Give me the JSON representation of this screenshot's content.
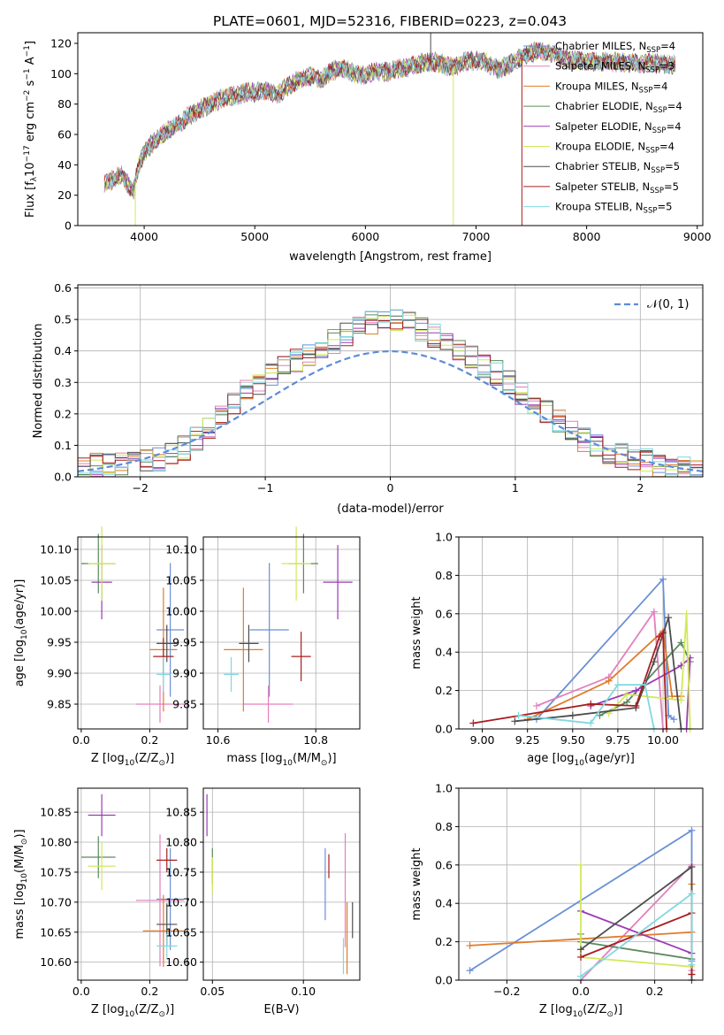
{
  "title": "PLATE=0601, MJD=52316, FIBERID=0223, z=0.043",
  "colors": {
    "Chabrier MILES": "#6a8fd6",
    "Salpeter MILES": "#e37fbd",
    "Kroupa MILES": "#e07b2a",
    "Chabrier ELODIE": "#5a8a5e",
    "Salpeter ELODIE": "#9b3bb5",
    "Kroupa ELODIE": "#d2e85a",
    "Chabrier STELIB": "#4d4d4d",
    "Salpeter STELIB": "#a81e1e",
    "Kroupa STELIB": "#7fd8e0"
  },
  "chart_data": [
    {
      "type": "line",
      "xlabel": "wavelength [Angstrom, rest frame]",
      "ylabel_main": "Flux [f",
      "ylabel_rest": "10",
      "ylabel_exp": "−17",
      "ylabel_units": " erg cm",
      "ylabel_exp2": "−2",
      "ylabel_s": " s",
      "ylabel_exp3": "−1",
      "ylabel_A": " A",
      "ylabel_exp4": "−1",
      "ylabel_end": "]",
      "xlim": [
        3400,
        9050
      ],
      "ylim": [
        0,
        127
      ],
      "xticks": [
        4000,
        5000,
        6000,
        7000,
        8000,
        9000
      ],
      "yticks": [
        0,
        20,
        40,
        60,
        80,
        100,
        120
      ],
      "legend_position": "right",
      "legend": [
        {
          "name": "Chabrier MILES",
          "nssp": "4"
        },
        {
          "name": "Salpeter MILES",
          "nssp": "3"
        },
        {
          "name": "Kroupa MILES",
          "nssp": "4"
        },
        {
          "name": "Chabrier ELODIE",
          "nssp": "4"
        },
        {
          "name": "Salpeter ELODIE",
          "nssp": "4"
        },
        {
          "name": "Kroupa ELODIE",
          "nssp": "4"
        },
        {
          "name": "Chabrier STELIB",
          "nssp": "5"
        },
        {
          "name": "Salpeter STELIB",
          "nssp": "5"
        },
        {
          "name": "Kroupa STELIB",
          "nssp": "5"
        }
      ],
      "spectrum_envelope": {
        "x": [
          3640,
          3700,
          3800,
          3900,
          3950,
          4000,
          4100,
          4200,
          4300,
          4400,
          4500,
          4600,
          4700,
          4800,
          4900,
          5000,
          5100,
          5200,
          5300,
          5400,
          5500,
          5600,
          5700,
          5800,
          5900,
          6000,
          6100,
          6200,
          6300,
          6400,
          6500,
          6600,
          6700,
          6800,
          6900,
          7000,
          7100,
          7200,
          7300,
          7400,
          7500,
          7600,
          7700,
          7800,
          7900,
          8000,
          8200,
          8400,
          8600,
          8800
        ],
        "y": [
          27,
          30,
          33,
          22,
          40,
          48,
          56,
          62,
          66,
          72,
          76,
          80,
          84,
          85,
          87,
          88,
          89,
          86,
          92,
          96,
          98,
          96,
          102,
          104,
          100,
          99,
          102,
          101,
          103,
          105,
          107,
          108,
          106,
          104,
          108,
          109,
          107,
          103,
          106,
          110,
          114,
          115,
          113,
          110,
          109,
          108,
          108,
          107,
          107,
          106
        ]
      },
      "spikes": [
        {
          "series": "Kroupa ELODIE",
          "x": 3920,
          "y": 0
        },
        {
          "series": "Kroupa ELODIE",
          "x": 6795,
          "y": 0
        },
        {
          "series": "Salpeter STELIB",
          "x": 7415,
          "y": 0
        },
        {
          "series": "Chabrier STELIB",
          "x": 6590,
          "y": 150
        }
      ]
    },
    {
      "type": "line",
      "xlabel": "(data-model)/error",
      "ylabel": "Normed distribution",
      "xlim": [
        -2.5,
        2.5
      ],
      "ylim": [
        0,
        0.61
      ],
      "xticks": [
        -2,
        -1,
        0,
        1,
        2
      ],
      "xtick_labels": [
        "−2",
        "−1",
        "0",
        "1",
        "2"
      ],
      "yticks": [
        0.0,
        0.1,
        0.2,
        0.3,
        0.4,
        0.5,
        0.6
      ],
      "ytick_labels": [
        "0.0",
        "0.1",
        "0.2",
        "0.3",
        "0.4",
        "0.5",
        "0.6"
      ],
      "grid": true,
      "legend_label": "𝒩(0, 1)",
      "legend_position": "top-right",
      "bin_width": 0.1,
      "base_hist": [
        0.02,
        0.04,
        0.035,
        0.04,
        0.045,
        0.05,
        0.055,
        0.07,
        0.09,
        0.12,
        0.15,
        0.19,
        0.23,
        0.27,
        0.3,
        0.33,
        0.35,
        0.37,
        0.39,
        0.41,
        0.43,
        0.45,
        0.47,
        0.49,
        0.5,
        0.5,
        0.49,
        0.47,
        0.45,
        0.43,
        0.4,
        0.38,
        0.35,
        0.33,
        0.3,
        0.27,
        0.24,
        0.21,
        0.18,
        0.15,
        0.12,
        0.1,
        0.08,
        0.07,
        0.06,
        0.05,
        0.04,
        0.035,
        0.03,
        0.02
      ]
    },
    {
      "type": "scatter",
      "xlabel": "Z [log",
      "xlabel_sub": "10",
      "xlabel_rest": "(Z/Z",
      "xlabel_sub2": "⊙",
      "xlabel_end": ")]",
      "ylabel": "age  [log",
      "ylabel_sub": "10",
      "ylabel_rest": "(age/yr)]",
      "xlim": [
        -0.01,
        0.31
      ],
      "ylim": [
        9.81,
        10.12
      ],
      "xticks": [
        0.0,
        0.2
      ],
      "xtick_labels": [
        "0.0",
        "0.2"
      ],
      "yticks": [
        9.85,
        9.9,
        9.95,
        10.0,
        10.05,
        10.1
      ],
      "ytick_labels": [
        "9.85",
        "9.90",
        "9.95",
        "10.00",
        "10.05",
        "10.10"
      ],
      "points": [
        {
          "series": "Chabrier MILES",
          "x": 0.26,
          "y": 9.97,
          "xerr": 0.04,
          "yerr": 0.108
        },
        {
          "series": "Salpeter MILES",
          "x": 0.23,
          "y": 9.85,
          "xerr": 0.07,
          "yerr": 0.03
        },
        {
          "series": "Kroupa MILES",
          "x": 0.24,
          "y": 9.938,
          "xerr": 0.04,
          "yerr": 0.1
        },
        {
          "series": "Chabrier ELODIE",
          "x": 0.05,
          "y": 10.077,
          "xerr": 0.05,
          "yerr": 0.048
        },
        {
          "series": "Salpeter ELODIE",
          "x": 0.06,
          "y": 10.047,
          "xerr": 0.03,
          "yerr": 0.06
        },
        {
          "series": "Kroupa ELODIE",
          "x": 0.06,
          "y": 10.077,
          "xerr": 0.04,
          "yerr": 0.06
        },
        {
          "series": "Chabrier STELIB",
          "x": 0.25,
          "y": 9.948,
          "xerr": 0.03,
          "yerr": 0.03
        },
        {
          "series": "Salpeter STELIB",
          "x": 0.24,
          "y": 9.927,
          "xerr": 0.03,
          "yerr": 0.03
        },
        {
          "series": "Kroupa STELIB",
          "x": 0.24,
          "y": 9.898,
          "xerr": 0.02,
          "yerr": 0.028
        }
      ]
    },
    {
      "type": "scatter",
      "xlabel": "mass [log",
      "xlabel_sub": "10",
      "xlabel_rest": "(M/M",
      "xlabel_sub2": "⊙",
      "xlabel_end": ")]",
      "xlim": [
        10.57,
        10.89
      ],
      "ylim": [
        9.81,
        10.12
      ],
      "xticks": [
        10.6,
        10.8
      ],
      "xtick_labels": [
        "10.6",
        "10.8"
      ],
      "yticks": [
        9.85,
        9.9,
        9.95,
        10.0,
        10.05,
        10.1
      ],
      "ytick_labels": [
        "9.85",
        "9.90",
        "9.95",
        "10.00",
        "10.05",
        "10.10"
      ],
      "points": [
        {
          "series": "Chabrier MILES",
          "x": 10.705,
          "y": 9.97,
          "xerr": 0.04,
          "yerr": 0.108
        },
        {
          "series": "Salpeter MILES",
          "x": 10.703,
          "y": 9.85,
          "xerr": 0.05,
          "yerr": 0.03
        },
        {
          "series": "Kroupa MILES",
          "x": 10.652,
          "y": 9.938,
          "xerr": 0.04,
          "yerr": 0.1
        },
        {
          "series": "Chabrier ELODIE",
          "x": 10.775,
          "y": 10.077,
          "xerr": 0.03,
          "yerr": 0.048
        },
        {
          "series": "Salpeter ELODIE",
          "x": 10.845,
          "y": 10.047,
          "xerr": 0.03,
          "yerr": 0.06
        },
        {
          "series": "Kroupa ELODIE",
          "x": 10.76,
          "y": 10.077,
          "xerr": 0.03,
          "yerr": 0.06
        },
        {
          "series": "Chabrier STELIB",
          "x": 10.663,
          "y": 9.948,
          "xerr": 0.02,
          "yerr": 0.03
        },
        {
          "series": "Salpeter STELIB",
          "x": 10.77,
          "y": 9.927,
          "xerr": 0.02,
          "yerr": 0.04
        },
        {
          "series": "Kroupa STELIB",
          "x": 10.627,
          "y": 9.898,
          "xerr": 0.015,
          "yerr": 0.028
        }
      ]
    },
    {
      "type": "line",
      "xlabel": "age  [log",
      "xlabel_sub": "10",
      "xlabel_rest": "(age/yr)]",
      "ylabel": "mass weight",
      "xlim": [
        8.87,
        10.22
      ],
      "ylim": [
        0,
        1.0
      ],
      "xticks": [
        9.0,
        9.25,
        9.5,
        9.75,
        10.0
      ],
      "xtick_labels": [
        "9.00",
        "9.25",
        "9.50",
        "9.75",
        "10.00"
      ],
      "yticks": [
        0.0,
        0.2,
        0.4,
        0.6,
        0.8,
        1.0
      ],
      "ytick_labels": [
        "0.0",
        "0.2",
        "0.4",
        "0.6",
        "0.8",
        "1.0"
      ],
      "grid": true,
      "series": [
        {
          "name": "Chabrier MILES",
          "x": [
            9.3,
            10.0,
            10.03,
            10.06
          ],
          "y": [
            0.05,
            0.78,
            0.07,
            0.05
          ]
        },
        {
          "name": "Salpeter MILES",
          "x": [
            9.3,
            9.7,
            9.95,
            10.0
          ],
          "y": [
            0.12,
            0.27,
            0.61,
            0.0
          ]
        },
        {
          "name": "Kroupa MILES",
          "x": [
            9.25,
            9.7,
            10.0,
            10.05,
            10.1
          ],
          "y": [
            0.05,
            0.25,
            0.51,
            0.17,
            0.17
          ]
        },
        {
          "name": "Chabrier ELODIE",
          "x": [
            9.65,
            9.8,
            10.1,
            10.15
          ],
          "y": [
            0.07,
            0.14,
            0.45,
            0.35
          ]
        },
        {
          "name": "Salpeter ELODIE",
          "x": [
            9.6,
            9.85,
            10.1,
            10.15,
            10.13
          ],
          "y": [
            0.12,
            0.2,
            0.33,
            0.37,
            0.0
          ]
        },
        {
          "name": "Kroupa ELODIE",
          "x": [
            9.7,
            9.8,
            10.1,
            10.13,
            10.15
          ],
          "y": [
            0.08,
            0.18,
            0.15,
            0.6,
            0.0
          ]
        },
        {
          "name": "Chabrier STELIB",
          "x": [
            9.18,
            9.5,
            9.85,
            9.95,
            10.03,
            10.1
          ],
          "y": [
            0.04,
            0.07,
            0.11,
            0.35,
            0.58,
            0.0
          ]
        },
        {
          "name": "Salpeter STELIB",
          "x": [
            8.95,
            9.6,
            9.85,
            9.98,
            10.0,
            10.02
          ],
          "y": [
            0.03,
            0.13,
            0.12,
            0.48,
            0.5,
            0.0
          ]
        },
        {
          "name": "Kroupa STELIB",
          "x": [
            9.2,
            9.6,
            9.75,
            9.9,
            9.95
          ],
          "y": [
            0.07,
            0.03,
            0.23,
            0.23,
            0.0
          ]
        }
      ]
    },
    {
      "type": "scatter",
      "xlabel": "Z [log",
      "xlabel_sub": "10",
      "xlabel_rest": "(Z/Z",
      "xlabel_sub2": "⊙",
      "xlabel_end": ")]",
      "ylabel": "mass [log",
      "ylabel_sub": "10",
      "ylabel_rest": "(M/M",
      "ylabel_sub2": "⊙",
      "ylabel_end": ")]",
      "xlim": [
        -0.01,
        0.31
      ],
      "ylim": [
        10.57,
        10.89
      ],
      "xticks": [
        0.0,
        0.2
      ],
      "xtick_labels": [
        "0.0",
        "0.2"
      ],
      "yticks": [
        10.6,
        10.65,
        10.7,
        10.75,
        10.8,
        10.85
      ],
      "ytick_labels": [
        "10.60",
        "10.65",
        "10.70",
        "10.75",
        "10.80",
        "10.85"
      ],
      "points": [
        {
          "series": "Chabrier MILES",
          "x": 0.26,
          "y": 10.705,
          "xerr": 0.04,
          "yerr": 0.085
        },
        {
          "series": "Salpeter MILES",
          "x": 0.23,
          "y": 10.703,
          "xerr": 0.07,
          "yerr": 0.11
        },
        {
          "series": "Kroupa MILES",
          "x": 0.24,
          "y": 10.652,
          "xerr": 0.06,
          "yerr": 0.06
        },
        {
          "series": "Chabrier ELODIE",
          "x": 0.05,
          "y": 10.775,
          "xerr": 0.05,
          "yerr": 0.035
        },
        {
          "series": "Salpeter ELODIE",
          "x": 0.06,
          "y": 10.845,
          "xerr": 0.04,
          "yerr": 0.035
        },
        {
          "series": "Kroupa ELODIE",
          "x": 0.06,
          "y": 10.76,
          "xerr": 0.04,
          "yerr": 0.04
        },
        {
          "series": "Chabrier STELIB",
          "x": 0.25,
          "y": 10.663,
          "xerr": 0.03,
          "yerr": 0.035
        },
        {
          "series": "Salpeter STELIB",
          "x": 0.25,
          "y": 10.77,
          "xerr": 0.03,
          "yerr": 0.02
        },
        {
          "series": "Kroupa STELIB",
          "x": 0.25,
          "y": 10.627,
          "xerr": 0.03,
          "yerr": 0.02
        }
      ]
    },
    {
      "type": "scatter",
      "xlabel": "E(B-V)",
      "xlim": [
        0.045,
        0.131
      ],
      "ylim": [
        10.57,
        10.89
      ],
      "xticks": [
        0.05,
        0.1
      ],
      "xtick_labels": [
        "0.05",
        "0.10"
      ],
      "yticks": [
        10.6,
        10.65,
        10.7,
        10.75,
        10.8,
        10.85
      ],
      "ytick_labels": [
        "10.60",
        "10.65",
        "10.70",
        "10.75",
        "10.80",
        "10.85"
      ],
      "points": [
        {
          "series": "Chabrier MILES",
          "x": 0.112,
          "y": 10.73,
          "yerr": 0.06
        },
        {
          "series": "Salpeter MILES",
          "x": 0.123,
          "y": 10.72,
          "yerr": 0.095
        },
        {
          "series": "Kroupa MILES",
          "x": 0.124,
          "y": 10.64,
          "yerr": 0.06
        },
        {
          "series": "Chabrier ELODIE",
          "x": 0.05,
          "y": 10.76,
          "yerr": 0.03
        },
        {
          "series": "Salpeter ELODIE",
          "x": 0.047,
          "y": 10.845,
          "yerr": 0.035
        },
        {
          "series": "Kroupa ELODIE",
          "x": 0.05,
          "y": 10.745,
          "yerr": 0.03
        },
        {
          "series": "Chabrier STELIB",
          "x": 0.127,
          "y": 10.67,
          "yerr": 0.03
        },
        {
          "series": "Salpeter STELIB",
          "x": 0.114,
          "y": 10.76,
          "yerr": 0.02
        },
        {
          "series": "Kroupa STELIB",
          "x": 0.122,
          "y": 10.61,
          "yerr": 0.03
        }
      ]
    },
    {
      "type": "line",
      "xlabel": "Z [log",
      "xlabel_sub": "10",
      "xlabel_rest": "(Z/Z",
      "xlabel_sub2": "⊙",
      "xlabel_end": ")]",
      "ylabel": "mass weight",
      "xlim": [
        -0.33,
        0.33
      ],
      "ylim": [
        0,
        1.0
      ],
      "xticks": [
        -0.2,
        0.0,
        0.2
      ],
      "xtick_labels": [
        "−0.2",
        "0.0",
        "0.2"
      ],
      "yticks": [
        0.0,
        0.2,
        0.4,
        0.6,
        0.8,
        1.0
      ],
      "ytick_labels": [
        "0.0",
        "0.2",
        "0.4",
        "0.6",
        "0.8",
        "1.0"
      ],
      "grid": true,
      "series": [
        {
          "name": "Chabrier MILES",
          "x": [
            -0.3,
            0.3,
            0.3
          ],
          "y": [
            0.05,
            0.78,
            0.1
          ]
        },
        {
          "name": "Salpeter MILES",
          "x": [
            0.0,
            0.3,
            0.3
          ],
          "y": [
            0.0,
            0.6,
            0.05
          ]
        },
        {
          "name": "Kroupa MILES",
          "x": [
            -0.3,
            0.3,
            0.3
          ],
          "y": [
            0.18,
            0.25,
            0.5
          ]
        },
        {
          "name": "Chabrier ELODIE",
          "x": [
            0.0,
            0.0,
            0.3
          ],
          "y": [
            0.24,
            0.2,
            0.11
          ]
        },
        {
          "name": "Salpeter ELODIE",
          "x": [
            0.0,
            0.3,
            0.3
          ],
          "y": [
            0.36,
            0.14,
            0.03
          ]
        },
        {
          "name": "Kroupa ELODIE",
          "x": [
            0.0,
            0.0,
            0.3
          ],
          "y": [
            0.6,
            0.12,
            0.07
          ]
        },
        {
          "name": "Chabrier STELIB",
          "x": [
            0.0,
            0.3,
            0.3
          ],
          "y": [
            0.16,
            0.59,
            0.0
          ]
        },
        {
          "name": "Salpeter STELIB",
          "x": [
            0.0,
            0.3,
            0.3
          ],
          "y": [
            0.12,
            0.35,
            0.03
          ]
        },
        {
          "name": "Kroupa STELIB",
          "x": [
            0.0,
            0.3,
            0.3
          ],
          "y": [
            0.02,
            0.45,
            0.08
          ]
        }
      ]
    }
  ]
}
